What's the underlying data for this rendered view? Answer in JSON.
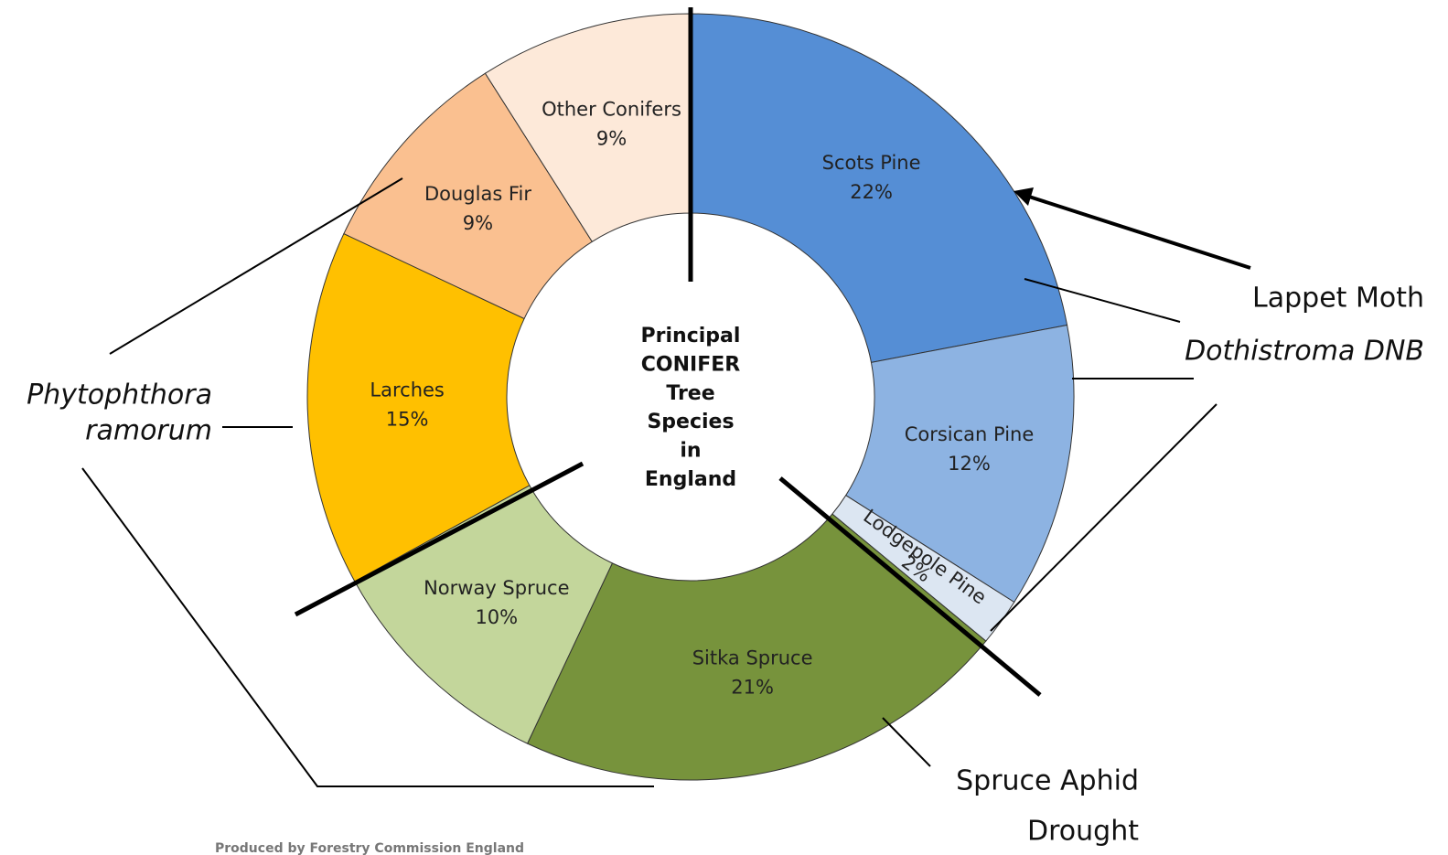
{
  "chart_data": {
    "type": "donut",
    "center_text": [
      "Principal",
      "CONIFER",
      "Tree",
      "Species",
      "in",
      "England"
    ],
    "categories": [
      "Scots Pine",
      "Corsican Pine",
      "Lodgepole Pine",
      "Sitka Spruce",
      "Norway Spruce",
      "Larches",
      "Douglas Fir",
      "Other Conifers"
    ],
    "values": [
      22,
      12,
      2,
      21,
      10,
      15,
      9,
      9
    ],
    "value_labels": [
      "22%",
      "12%",
      "2%",
      "21%",
      "10%",
      "15%",
      "9%",
      "9%"
    ],
    "colors": [
      "#558ed5",
      "#8db3e2",
      "#dce6f2",
      "#77933c",
      "#c3d69b",
      "#ffc000",
      "#fac090",
      "#fde9d9"
    ],
    "annotations": [
      "Lappet Moth",
      "Dothistroma DNB",
      "Phytophthora",
      "ramorum",
      "Spruce Aphid",
      "Drought"
    ],
    "source": "Produced by Forestry Commission England"
  }
}
